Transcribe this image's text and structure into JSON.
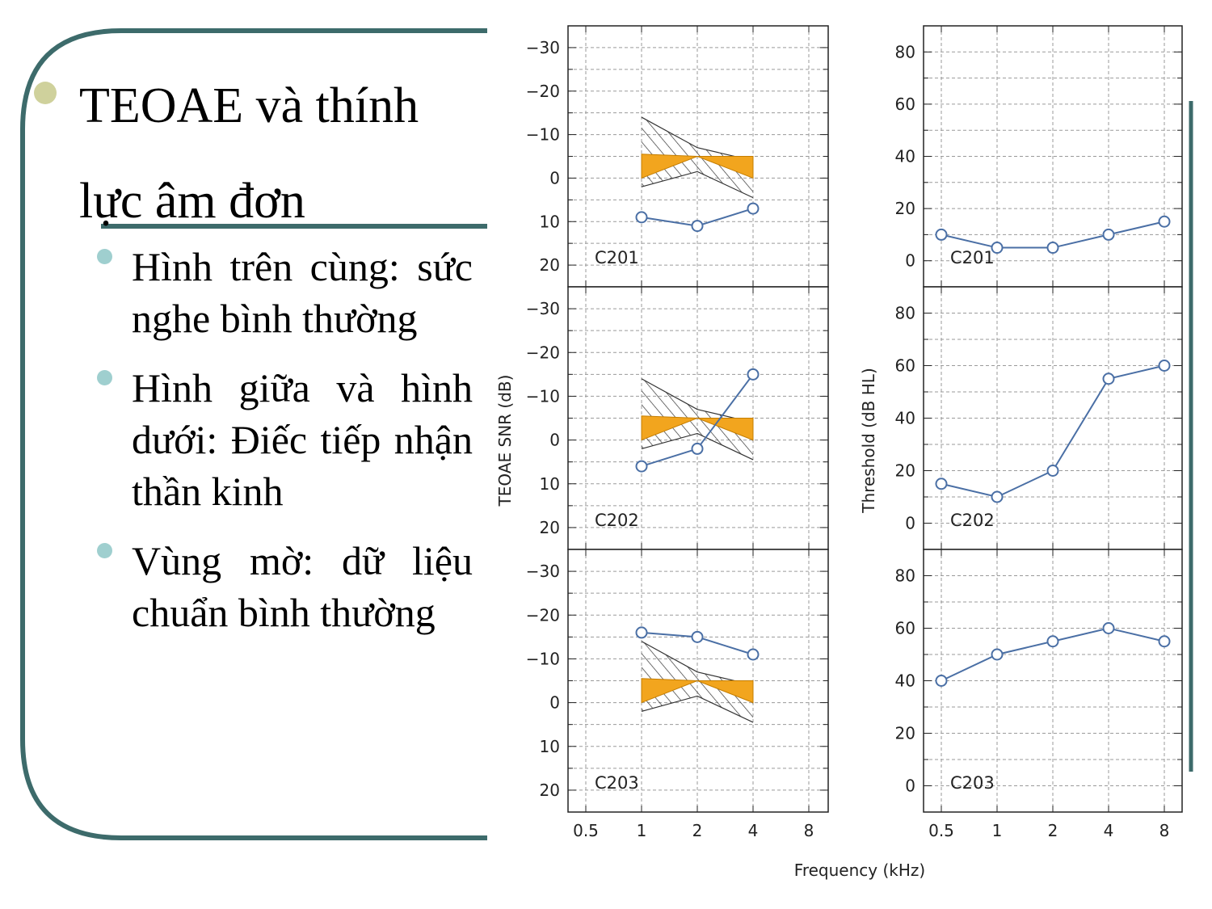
{
  "slide": {
    "title_line1": "TEOAE và thính",
    "title_line2": "lực âm đơn",
    "bullets": [
      "Hình trên cùng: sức nghe bình thường",
      "Hình giữa và hình dưới: Điếc tiếp nhận thần kinh",
      "Vùng mờ: dữ liệu chuẩn bình thường"
    ]
  },
  "colors": {
    "frame": "#3d6b6b",
    "title_dot": "#cfd19c",
    "bullet_dot": "#9fcfcf",
    "series": "#4a6fa5",
    "norm_fill": "#f2a51e",
    "hatch": "#333333"
  },
  "chart_data": [
    {
      "type": "line",
      "panel": "C201",
      "ylabel": "TEOAE SNR (dB)",
      "xlabel": "Frequency (kHz)",
      "x_scale": "log2",
      "xticks": [
        "0.5",
        "1",
        "2",
        "4",
        "8"
      ],
      "yticks": [
        "20",
        "10",
        "0",
        "−10",
        "−20",
        "−30"
      ],
      "ylim": [
        -35,
        25
      ],
      "x": [
        1,
        2,
        4
      ],
      "values": [
        9,
        11,
        7
      ],
      "normal_region": {
        "x": [
          1,
          2,
          4
        ],
        "upper": [
          2,
          -1.5,
          4.5
        ],
        "lower": [
          -14,
          -7,
          -4
        ],
        "median_upper": [
          0,
          -5,
          0
        ],
        "median_lower": [
          -5.5,
          -5,
          -5
        ]
      }
    },
    {
      "type": "line",
      "panel": "C201",
      "ylabel": "Threshold (dB HL)",
      "x_scale": "log2",
      "xticks": [
        "0.5",
        "1",
        "2",
        "4",
        "8"
      ],
      "yticks": [
        "0",
        "20",
        "40",
        "60",
        "80"
      ],
      "ylim": [
        90,
        -10
      ],
      "y_inverted": true,
      "x": [
        0.5,
        1,
        2,
        4,
        8
      ],
      "values": [
        10,
        5,
        5,
        10,
        15
      ]
    },
    {
      "type": "line",
      "panel": "C202",
      "ylabel": "TEOAE SNR (dB)",
      "x_scale": "log2",
      "xticks": [
        "0.5",
        "1",
        "2",
        "4",
        "8"
      ],
      "yticks": [
        "20",
        "10",
        "0",
        "−10",
        "−20",
        "−30"
      ],
      "ylim": [
        -35,
        25
      ],
      "x": [
        1,
        2,
        4
      ],
      "values": [
        6,
        2,
        -15
      ],
      "normal_region": {
        "x": [
          1,
          2,
          4
        ],
        "upper": [
          2,
          -1.5,
          4.5
        ],
        "lower": [
          -14,
          -7,
          -4
        ],
        "median_upper": [
          0,
          -5,
          0
        ],
        "median_lower": [
          -5.5,
          -5,
          -5
        ]
      }
    },
    {
      "type": "line",
      "panel": "C202",
      "ylabel": "Threshold (dB HL)",
      "x_scale": "log2",
      "xticks": [
        "0.5",
        "1",
        "2",
        "4",
        "8"
      ],
      "yticks": [
        "0",
        "20",
        "40",
        "60",
        "80"
      ],
      "ylim": [
        90,
        -10
      ],
      "y_inverted": true,
      "x": [
        0.5,
        1,
        2,
        4,
        8
      ],
      "values": [
        15,
        10,
        20,
        55,
        60
      ]
    },
    {
      "type": "line",
      "panel": "C203",
      "ylabel": "TEOAE SNR (dB)",
      "x_scale": "log2",
      "xticks": [
        "0.5",
        "1",
        "2",
        "4",
        "8"
      ],
      "yticks": [
        "20",
        "10",
        "0",
        "−10",
        "−20",
        "−30"
      ],
      "ylim": [
        -35,
        25
      ],
      "x": [
        1,
        2,
        4
      ],
      "values": [
        -16,
        -15,
        -11
      ],
      "normal_region": {
        "x": [
          1,
          2,
          4
        ],
        "upper": [
          2,
          -1.5,
          4.5
        ],
        "lower": [
          -14,
          -7,
          -4
        ],
        "median_upper": [
          0,
          -5,
          0
        ],
        "median_lower": [
          -5.5,
          -5,
          -5
        ]
      }
    },
    {
      "type": "line",
      "panel": "C203",
      "ylabel": "Threshold (dB HL)",
      "x_scale": "log2",
      "xticks": [
        "0.5",
        "1",
        "2",
        "4",
        "8"
      ],
      "yticks": [
        "0",
        "20",
        "40",
        "60",
        "80"
      ],
      "ylim": [
        90,
        -10
      ],
      "y_inverted": true,
      "x": [
        0.5,
        1,
        2,
        4,
        8
      ],
      "values": [
        40,
        50,
        55,
        60,
        55
      ]
    }
  ]
}
